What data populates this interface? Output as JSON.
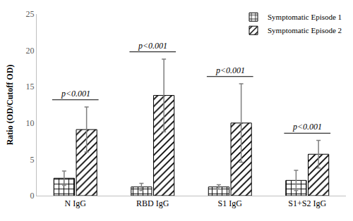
{
  "chart_data": {
    "type": "bar",
    "categories": [
      "N IgG",
      "RBD IgG",
      "S1 IgG",
      "S1+S2 IgG"
    ],
    "series": [
      {
        "name": "Symptomatic Episode 1",
        "color": "#ffffff",
        "marker": "+",
        "values": [
          2.4,
          1.2,
          1.2,
          2.1
        ],
        "errors": [
          1.0,
          0.5,
          0.3,
          1.4
        ]
      },
      {
        "name": "Symptomatic Episode 2",
        "color": "#ffffff",
        "marker": "/",
        "values": [
          9.1,
          13.8,
          10.0,
          5.7
        ],
        "errors": [
          3.1,
          5.0,
          5.4,
          1.9
        ]
      }
    ],
    "y_label": "Ratio (OD/Cutoff OD)",
    "ylim": [
      0,
      25
    ],
    "yticks": [
      0,
      5,
      10,
      15,
      20,
      25
    ],
    "grid": false,
    "legend": "top right",
    "annotations": [
      {
        "category": "N IgG",
        "text": "p<0.001"
      },
      {
        "category": "RBD IgG",
        "text": "p<0.001"
      },
      {
        "category": "S1 IgG",
        "text": "p<0.001"
      },
      {
        "category": "S1+S2 IgG",
        "text": "p<0.001"
      }
    ]
  }
}
